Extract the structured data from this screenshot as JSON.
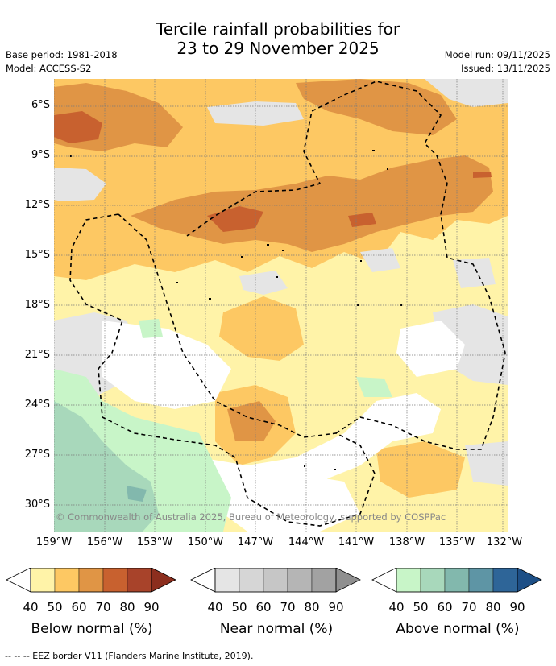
{
  "title_line1": "Tercile rainfall probabilities for",
  "title_line2": "23 to 29 November 2025",
  "base_period": "Base period: 1981-2018",
  "model": "Model: ACCESS-S2",
  "model_run": "Model run: 09/11/2025",
  "issued": "Issued: 13/11/2025",
  "copyright": "© Commonwealth of Australia 2025, Bureau of Meteorology, supported by COSPPac",
  "lat_labels": [
    "6°S",
    "9°S",
    "12°S",
    "15°S",
    "18°S",
    "21°S",
    "24°S",
    "27°S",
    "30°S"
  ],
  "lon_labels": [
    "159°W",
    "156°W",
    "153°W",
    "150°W",
    "147°W",
    "144°W",
    "141°W",
    "138°W",
    "135°W",
    "132°W"
  ],
  "colorbars": {
    "ticks": [
      "40",
      "50",
      "60",
      "70",
      "80",
      "90"
    ],
    "below": {
      "title": "Below normal (%)",
      "colors": [
        "#fff3a8",
        "#fdc863",
        "#e09545",
        "#c8612f",
        "#a8432a",
        "#8c2e1e"
      ]
    },
    "near": {
      "title": "Near normal (%)",
      "colors": [
        "#e5e5e5",
        "#d6d6d6",
        "#c6c6c6",
        "#b5b5b5",
        "#a2a2a2",
        "#8f8f8f"
      ]
    },
    "above": {
      "title": "Above normal (%)",
      "colors": [
        "#c8f5c8",
        "#a8d8bb",
        "#82b8ad",
        "#5e95a5",
        "#2e6598",
        "#1d4f86"
      ]
    }
  },
  "eez_note": "--  --  -- EEZ border V11 (Flanders Marine Institute, 2019)."
}
